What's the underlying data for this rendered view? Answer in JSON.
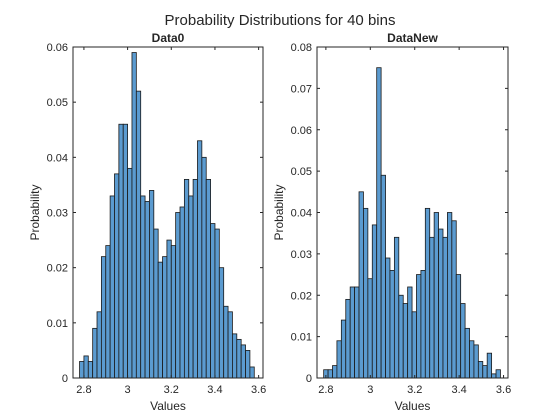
{
  "figure": {
    "suptitle": "Probability Distributions for 40 bins"
  },
  "colors": {
    "bar_fill": "#5b9bd0",
    "bar_edge": "#1a1a1a",
    "axis": "#262626"
  },
  "chart_data": [
    {
      "type": "bar",
      "title": "Data0",
      "xlabel": "Values",
      "ylabel": "Probability",
      "xlim": [
        2.75,
        3.62
      ],
      "ylim": [
        0,
        0.06
      ],
      "xticks": [
        2.8,
        3.0,
        3.2,
        3.4,
        3.6
      ],
      "xtick_labels": [
        "2.8",
        "3",
        "3.2",
        "3.4",
        "3.6"
      ],
      "yticks": [
        0,
        0.01,
        0.02,
        0.03,
        0.04,
        0.05,
        0.06
      ],
      "ytick_labels": [
        "0",
        "0.01",
        "0.02",
        "0.03",
        "0.04",
        "0.05",
        "0.06"
      ],
      "bin_width": 0.02,
      "bin_start": 2.78,
      "values": [
        0.003,
        0.004,
        0.003,
        0.009,
        0.012,
        0.022,
        0.024,
        0.033,
        0.037,
        0.046,
        0.046,
        0.038,
        0.059,
        0.052,
        0.033,
        0.032,
        0.034,
        0.027,
        0.021,
        0.022,
        0.025,
        0.024,
        0.03,
        0.031,
        0.036,
        0.033,
        0.036,
        0.043,
        0.04,
        0.036,
        0.028,
        0.027,
        0.02,
        0.013,
        0.012,
        0.008,
        0.007,
        0.006,
        0.005,
        0.002
      ]
    },
    {
      "type": "bar",
      "title": "DataNew",
      "xlabel": "Values",
      "ylabel": "Probability",
      "xlim": [
        2.76,
        3.62
      ],
      "ylim": [
        0,
        0.08
      ],
      "xticks": [
        2.8,
        3.0,
        3.2,
        3.4,
        3.6
      ],
      "xtick_labels": [
        "2.8",
        "3",
        "3.2",
        "3.4",
        "3.6"
      ],
      "yticks": [
        0,
        0.01,
        0.02,
        0.03,
        0.04,
        0.05,
        0.06,
        0.07,
        0.08
      ],
      "ytick_labels": [
        "0",
        "0.01",
        "0.02",
        "0.03",
        "0.04",
        "0.05",
        "0.06",
        "0.07",
        "0.08"
      ],
      "bin_width": 0.0199,
      "bin_start": 2.79,
      "values": [
        0.002,
        0.002,
        0.003,
        0.009,
        0.014,
        0.019,
        0.022,
        0.022,
        0.045,
        0.041,
        0.024,
        0.037,
        0.075,
        0.049,
        0.029,
        0.026,
        0.034,
        0.02,
        0.018,
        0.022,
        0.016,
        0.025,
        0.026,
        0.041,
        0.034,
        0.04,
        0.036,
        0.034,
        0.04,
        0.038,
        0.025,
        0.018,
        0.012,
        0.009,
        0.008,
        0.004,
        0.003,
        0.006,
        0.001,
        0.002
      ]
    }
  ]
}
